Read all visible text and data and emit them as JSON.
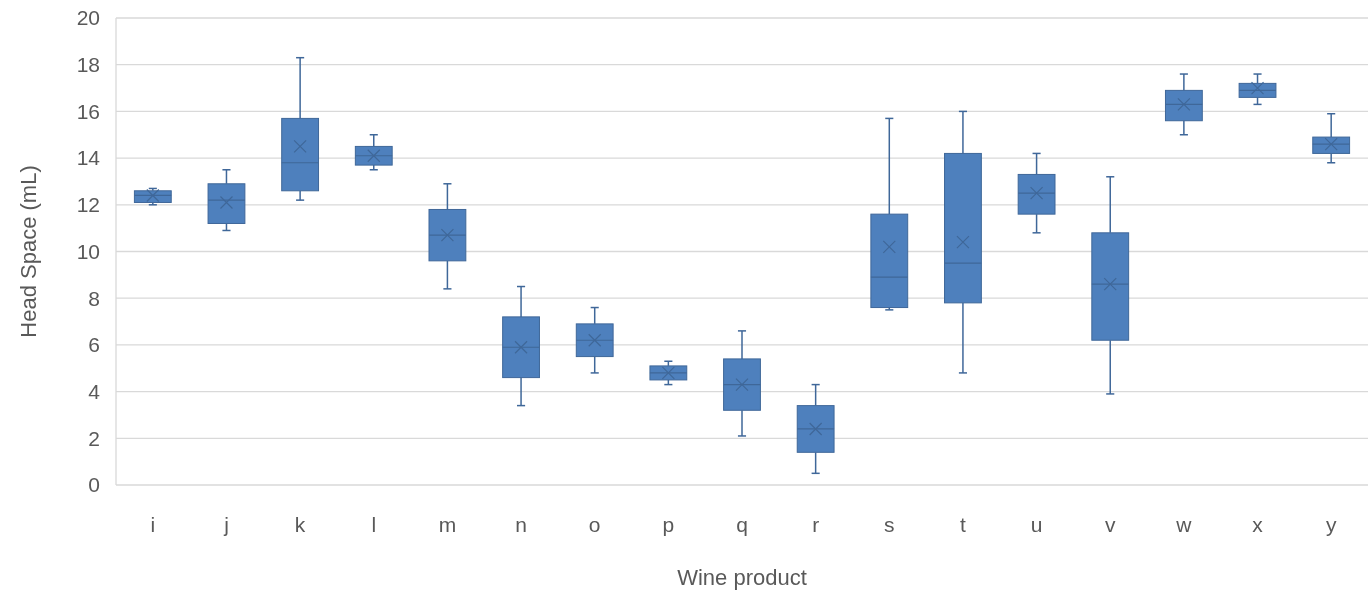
{
  "chart_data": {
    "type": "box",
    "xlabel": "Wine product",
    "ylabel": "Head Space (mL)",
    "categories": [
      "i",
      "j",
      "k",
      "l",
      "m",
      "n",
      "o",
      "p",
      "q",
      "r",
      "s",
      "t",
      "u",
      "v",
      "w",
      "x",
      "y"
    ],
    "ylim": [
      0,
      20
    ],
    "yticks": [
      0,
      2,
      4,
      6,
      8,
      10,
      12,
      14,
      16,
      18,
      20
    ],
    "grid": "y",
    "series": [
      {
        "color": "#4e80bd",
        "boxes": [
          {
            "low": 12.0,
            "q1": 12.1,
            "median": 12.4,
            "q3": 12.6,
            "high": 12.7,
            "mean": 12.4
          },
          {
            "low": 10.9,
            "q1": 11.2,
            "median": 12.2,
            "q3": 12.9,
            "high": 13.5,
            "mean": 12.1
          },
          {
            "low": 12.2,
            "q1": 12.6,
            "median": 13.8,
            "q3": 15.7,
            "high": 18.3,
            "mean": 14.5
          },
          {
            "low": 13.5,
            "q1": 13.7,
            "median": 14.1,
            "q3": 14.5,
            "high": 15.0,
            "mean": 14.1
          },
          {
            "low": 8.4,
            "q1": 9.6,
            "median": 10.7,
            "q3": 11.8,
            "high": 12.9,
            "mean": 10.7
          },
          {
            "low": 3.4,
            "q1": 4.6,
            "median": 5.9,
            "q3": 7.2,
            "high": 8.5,
            "mean": 5.9
          },
          {
            "low": 4.8,
            "q1": 5.5,
            "median": 6.2,
            "q3": 6.9,
            "high": 7.6,
            "mean": 6.2
          },
          {
            "low": 4.3,
            "q1": 4.5,
            "median": 4.8,
            "q3": 5.1,
            "high": 5.3,
            "mean": 4.8
          },
          {
            "low": 2.1,
            "q1": 3.2,
            "median": 4.3,
            "q3": 5.4,
            "high": 6.6,
            "mean": 4.3
          },
          {
            "low": 0.5,
            "q1": 1.4,
            "median": 2.4,
            "q3": 3.4,
            "high": 4.3,
            "mean": 2.4
          },
          {
            "low": 7.5,
            "q1": 7.6,
            "median": 8.9,
            "q3": 11.6,
            "high": 15.7,
            "mean": 10.2
          },
          {
            "low": 4.8,
            "q1": 7.8,
            "median": 9.5,
            "q3": 14.2,
            "high": 16.0,
            "mean": 10.4
          },
          {
            "low": 10.8,
            "q1": 11.6,
            "median": 12.5,
            "q3": 13.3,
            "high": 14.2,
            "mean": 12.5
          },
          {
            "low": 3.9,
            "q1": 6.2,
            "median": 8.6,
            "q3": 10.8,
            "high": 13.2,
            "mean": 8.6
          },
          {
            "low": 15.0,
            "q1": 15.6,
            "median": 16.3,
            "q3": 16.9,
            "high": 17.6,
            "mean": 16.3
          },
          {
            "low": 16.3,
            "q1": 16.6,
            "median": 16.9,
            "q3": 17.2,
            "high": 17.6,
            "mean": 17.0
          },
          {
            "low": 13.8,
            "q1": 14.2,
            "median": 14.6,
            "q3": 14.9,
            "high": 15.9,
            "mean": 14.6
          }
        ]
      }
    ]
  }
}
